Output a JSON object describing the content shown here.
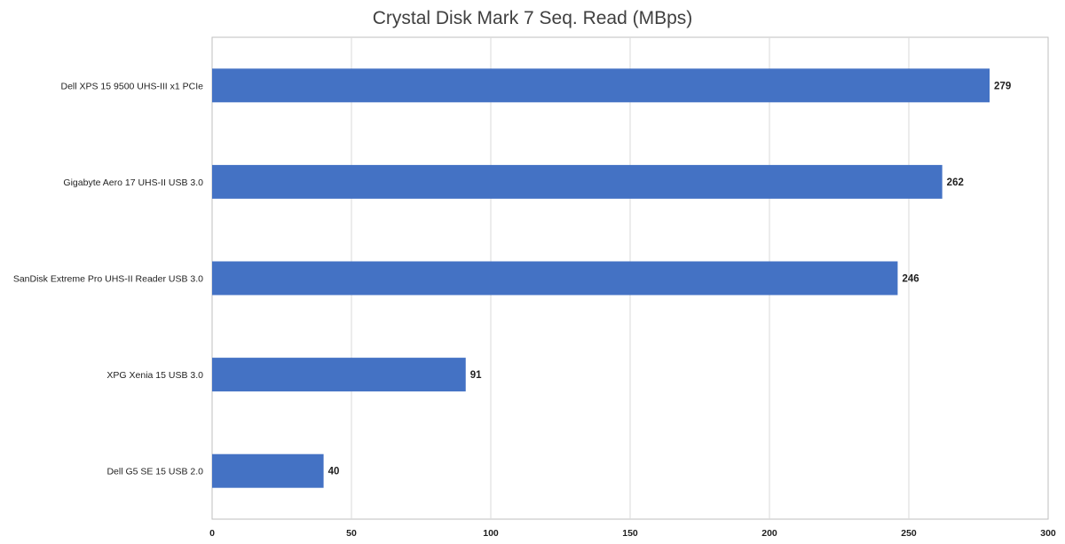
{
  "chart_data": {
    "type": "bar",
    "orientation": "horizontal",
    "title": "Crystal Disk Mark 7 Seq. Read (MBps)",
    "categories": [
      "Dell XPS 15 9500 UHS-III x1 PCIe",
      "Gigabyte Aero 17 UHS-II USB 3.0",
      "SanDisk Extreme Pro UHS-II Reader USB 3.0",
      "XPG Xenia 15 USB 3.0",
      "Dell G5 SE 15 USB 2.0"
    ],
    "values": [
      279,
      262,
      246,
      91,
      40
    ],
    "xlim": [
      0,
      300
    ],
    "xticks": [
      0,
      50,
      100,
      150,
      200,
      250,
      300
    ],
    "grid": true,
    "legend": "none",
    "data_labels": true,
    "bar_color": "#4472c4",
    "grid_color": "#d9d9d9",
    "axis_color": "#bfbfbf"
  }
}
